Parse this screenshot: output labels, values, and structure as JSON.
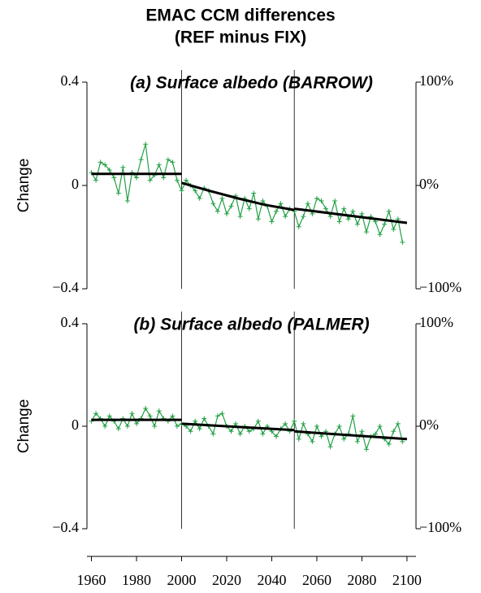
{
  "title": "EMAC CCM differences",
  "subtitle": "(REF minus FIX)",
  "chart_data": [
    {
      "type": "line",
      "title": "(a) Surface albedo (BARROW)",
      "y_label": "Change",
      "xlim": [
        1958,
        2104
      ],
      "ylim": [
        -0.4,
        0.4
      ],
      "yticks": [
        {
          "value": -0.4,
          "label": "−0.4"
        },
        0,
        0.4
      ],
      "y2lim": [
        -100,
        100
      ],
      "y2ticks": [
        {
          "value": -100,
          "label": "−100%"
        },
        {
          "value": 0,
          "label": "0%"
        },
        {
          "value": 100,
          "label": "100%"
        }
      ],
      "vlines": [
        2000,
        2050
      ],
      "x": [
        1960,
        1962,
        1964,
        1966,
        1968,
        1970,
        1972,
        1974,
        1976,
        1978,
        1980,
        1982,
        1984,
        1986,
        1988,
        1990,
        1992,
        1994,
        1996,
        1998,
        2000,
        2002,
        2004,
        2006,
        2008,
        2010,
        2012,
        2014,
        2016,
        2018,
        2020,
        2022,
        2024,
        2026,
        2028,
        2030,
        2032,
        2034,
        2036,
        2038,
        2040,
        2042,
        2044,
        2046,
        2048,
        2050,
        2052,
        2054,
        2056,
        2058,
        2060,
        2062,
        2064,
        2066,
        2068,
        2070,
        2072,
        2074,
        2076,
        2078,
        2080,
        2082,
        2084,
        2086,
        2088,
        2090,
        2092,
        2094,
        2096,
        2098
      ],
      "series": [
        {
          "color": "#22a045",
          "markers": true,
          "values": [
            0.05,
            0.02,
            0.09,
            0.08,
            0.06,
            0.03,
            -0.03,
            0.07,
            -0.06,
            0.05,
            0.03,
            0.1,
            0.16,
            0.02,
            0.04,
            0.08,
            0.03,
            0.1,
            0.09,
            0.02,
            -0.02,
            0.02,
            0.0,
            -0.02,
            -0.05,
            -0.01,
            -0.02,
            -0.07,
            -0.1,
            -0.05,
            -0.11,
            -0.08,
            -0.04,
            -0.12,
            -0.05,
            -0.09,
            -0.03,
            -0.13,
            -0.06,
            -0.08,
            -0.14,
            -0.1,
            -0.07,
            -0.12,
            -0.09,
            -0.1,
            -0.16,
            -0.12,
            -0.07,
            -0.11,
            -0.05,
            -0.06,
            -0.09,
            -0.12,
            -0.06,
            -0.14,
            -0.09,
            -0.13,
            -0.1,
            -0.15,
            -0.11,
            -0.18,
            -0.12,
            -0.14,
            -0.19,
            -0.15,
            -0.1,
            -0.17,
            -0.13,
            -0.22
          ]
        },
        {
          "color": "#000000",
          "x": [
            1960,
            2000
          ],
          "values": [
            0.045,
            0.045
          ]
        },
        {
          "color": "#000000",
          "x": [
            2000,
            2012,
            2025,
            2037,
            2050
          ],
          "values": [
            0.01,
            -0.02,
            -0.05,
            -0.075,
            -0.095
          ]
        },
        {
          "color": "#000000",
          "x": [
            2050,
            2100
          ],
          "values": [
            -0.09,
            -0.145
          ]
        }
      ]
    },
    {
      "type": "line",
      "title": "(b) Surface albedo (PALMER)",
      "y_label": "Change",
      "xlim": [
        1958,
        2104
      ],
      "ylim": [
        -0.4,
        0.4
      ],
      "yticks": [
        {
          "value": -0.4,
          "label": "−0.4"
        },
        0,
        0.4
      ],
      "y2lim": [
        -100,
        100
      ],
      "y2ticks": [
        {
          "value": -100,
          "label": "−100%"
        },
        {
          "value": 0,
          "label": "0%"
        },
        {
          "value": 100,
          "label": "100%"
        }
      ],
      "xticks": [
        1960,
        1980,
        2000,
        2020,
        2040,
        2060,
        2080,
        2100
      ],
      "vlines": [
        2000,
        2050
      ],
      "x": [
        1960,
        1962,
        1964,
        1966,
        1968,
        1970,
        1972,
        1974,
        1976,
        1978,
        1980,
        1982,
        1984,
        1986,
        1988,
        1990,
        1992,
        1994,
        1996,
        1998,
        2000,
        2002,
        2004,
        2006,
        2008,
        2010,
        2012,
        2014,
        2016,
        2018,
        2020,
        2022,
        2024,
        2026,
        2028,
        2030,
        2032,
        2034,
        2036,
        2038,
        2040,
        2042,
        2044,
        2046,
        2048,
        2050,
        2052,
        2054,
        2056,
        2058,
        2060,
        2062,
        2064,
        2066,
        2068,
        2070,
        2072,
        2074,
        2076,
        2078,
        2080,
        2082,
        2084,
        2086,
        2088,
        2090,
        2092,
        2094,
        2096,
        2098
      ],
      "series": [
        {
          "color": "#22a045",
          "markers": true,
          "values": [
            0.02,
            0.05,
            0.03,
            0.0,
            0.04,
            0.02,
            -0.01,
            0.03,
            0.0,
            0.05,
            0.01,
            0.03,
            0.07,
            0.04,
            0.0,
            0.06,
            0.03,
            0.02,
            0.04,
            0.0,
            0.01,
            0.0,
            -0.02,
            0.02,
            -0.01,
            0.03,
            0.0,
            -0.03,
            0.04,
            0.05,
            0.0,
            -0.02,
            0.01,
            -0.03,
            0.0,
            -0.02,
            -0.01,
            0.02,
            -0.03,
            0.0,
            -0.02,
            -0.04,
            -0.01,
            0.01,
            -0.02,
            0.02,
            -0.05,
            0.01,
            -0.03,
            -0.06,
            0.0,
            -0.04,
            -0.02,
            -0.08,
            -0.03,
            0.0,
            -0.05,
            -0.03,
            0.04,
            -0.06,
            -0.02,
            -0.09,
            -0.04,
            -0.03,
            0.0,
            -0.05,
            -0.07,
            -0.02,
            0.01,
            -0.06
          ]
        },
        {
          "color": "#000000",
          "x": [
            1960,
            2000
          ],
          "values": [
            0.025,
            0.025
          ]
        },
        {
          "color": "#000000",
          "x": [
            2000,
            2050
          ],
          "values": [
            0.01,
            -0.015
          ]
        },
        {
          "color": "#000000",
          "x": [
            2050,
            2100
          ],
          "values": [
            -0.02,
            -0.05
          ]
        }
      ]
    }
  ]
}
